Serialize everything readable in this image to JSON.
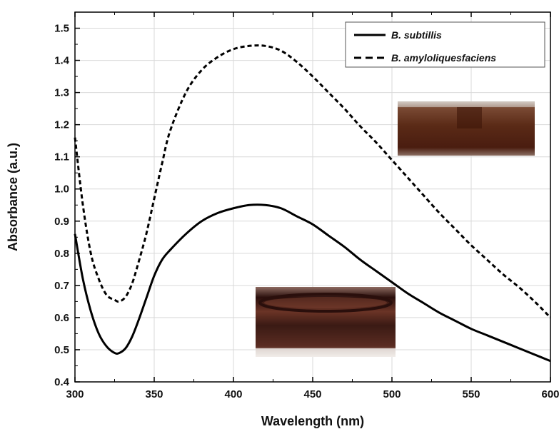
{
  "chart_data": {
    "type": "line",
    "xlabel": "Wavelength (nm)",
    "ylabel": "Absorbance (a.u.)",
    "xlim": [
      300,
      600
    ],
    "ylim": [
      0.4,
      1.55
    ],
    "x_ticks": [
      "300",
      "350",
      "400",
      "450",
      "500",
      "550",
      "600"
    ],
    "y_ticks": [
      "0.4",
      "0.5",
      "0.6",
      "0.7",
      "0.8",
      "0.9",
      "1.0",
      "1.1",
      "1.2",
      "1.3",
      "1.4",
      "1.5"
    ],
    "grid": true,
    "legend_position": "top-right",
    "series": [
      {
        "name": "B. subtillis",
        "style": "solid",
        "color": "#000000",
        "x": [
          300,
          305,
          310,
          315,
          320,
          325,
          328,
          332,
          336,
          340,
          345,
          350,
          355,
          360,
          370,
          380,
          390,
          400,
          410,
          420,
          430,
          440,
          450,
          460,
          470,
          480,
          490,
          500,
          510,
          520,
          530,
          540,
          550,
          560,
          570,
          580,
          590,
          600
        ],
        "y": [
          0.86,
          0.72,
          0.62,
          0.55,
          0.51,
          0.49,
          0.49,
          0.505,
          0.54,
          0.59,
          0.66,
          0.73,
          0.78,
          0.81,
          0.86,
          0.9,
          0.925,
          0.94,
          0.95,
          0.95,
          0.94,
          0.915,
          0.89,
          0.855,
          0.82,
          0.78,
          0.745,
          0.71,
          0.675,
          0.645,
          0.615,
          0.59,
          0.565,
          0.545,
          0.525,
          0.505,
          0.485,
          0.465
        ]
      },
      {
        "name": "B. amyloliquesfaciens",
        "style": "dashed",
        "color": "#000000",
        "x": [
          300,
          305,
          310,
          315,
          320,
          325,
          328,
          332,
          336,
          340,
          345,
          350,
          355,
          360,
          370,
          380,
          390,
          400,
          410,
          420,
          430,
          440,
          450,
          460,
          470,
          480,
          490,
          500,
          510,
          520,
          530,
          540,
          550,
          560,
          570,
          580,
          590,
          600
        ],
        "y": [
          1.16,
          0.95,
          0.8,
          0.72,
          0.67,
          0.655,
          0.65,
          0.665,
          0.705,
          0.77,
          0.86,
          0.97,
          1.08,
          1.18,
          1.3,
          1.37,
          1.41,
          1.435,
          1.445,
          1.445,
          1.43,
          1.395,
          1.35,
          1.3,
          1.25,
          1.195,
          1.145,
          1.09,
          1.035,
          0.98,
          0.925,
          0.875,
          0.825,
          0.78,
          0.735,
          0.695,
          0.65,
          0.6
        ]
      }
    ]
  },
  "photo_upper": {
    "colors": [
      "#5a2a16",
      "#4a1d10",
      "#7a4a34",
      "#d9d3cf"
    ]
  },
  "photo_lower": {
    "colors": [
      "#3a1a14",
      "#6b3426",
      "#2a0f0c",
      "#efe9e6"
    ]
  }
}
